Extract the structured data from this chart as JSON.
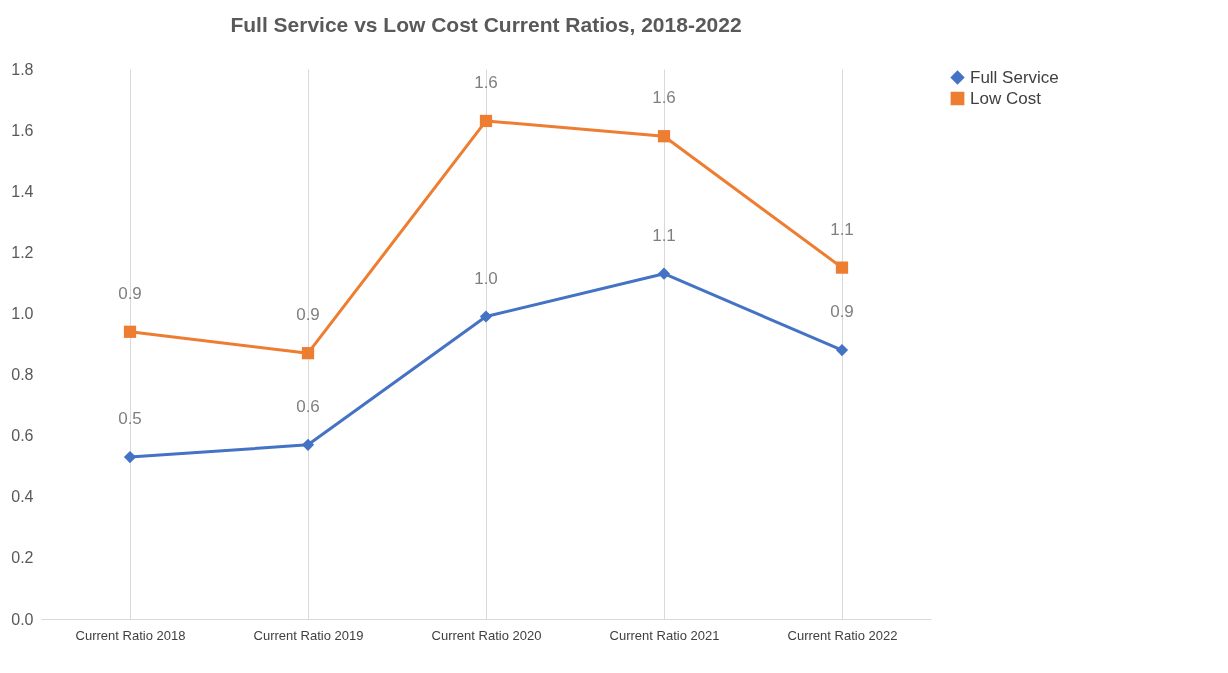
{
  "chart_data": {
    "type": "line",
    "title": "Full Service vs Low Cost Current Ratios, 2018-2022",
    "categories": [
      "Current Ratio 2018",
      "Current Ratio 2019",
      "Current Ratio 2020",
      "Current Ratio 2021",
      "Current Ratio 2022"
    ],
    "series": [
      {
        "name": "Full Service",
        "color": "#4472c4",
        "marker": "diamond",
        "values": [
          0.53,
          0.57,
          0.99,
          1.13,
          0.88
        ],
        "value_labels": [
          "0.5",
          "0.6",
          "1.0",
          "1.1",
          "0.9"
        ]
      },
      {
        "name": "Low Cost",
        "color": "#ed7d31",
        "marker": "square",
        "values": [
          0.94,
          0.87,
          1.63,
          1.58,
          1.15
        ],
        "value_labels": [
          "0.9",
          "0.9",
          "1.6",
          "1.6",
          "1.1"
        ]
      }
    ],
    "ylim": [
      0,
      1.8
    ],
    "yticks": [
      {
        "value": 0,
        "label": "0.0"
      },
      {
        "value": 0.2,
        "label": "0.2"
      },
      {
        "value": 0.4,
        "label": "0.4"
      },
      {
        "value": 0.6,
        "label": "0.6"
      },
      {
        "value": 0.8,
        "label": "0.8"
      },
      {
        "value": 1.0,
        "label": "1.0"
      },
      {
        "value": 1.2,
        "label": "1.2"
      },
      {
        "value": 1.4,
        "label": "1.4"
      },
      {
        "value": 1.6,
        "label": "1.6"
      },
      {
        "value": 1.8,
        "label": "1.8"
      }
    ],
    "grid": "x",
    "legend": "right",
    "line_style": "solid"
  }
}
